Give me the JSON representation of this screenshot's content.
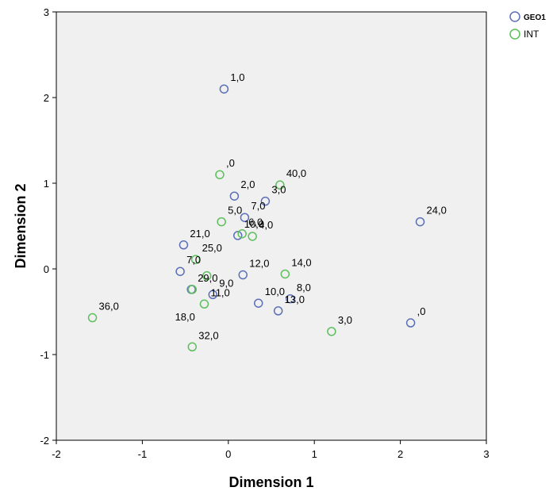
{
  "chart_data": {
    "type": "scatter",
    "title": "",
    "xlabel": "Dimension 1",
    "ylabel": "Dimension 2",
    "xlim": [
      -2,
      3
    ],
    "ylim": [
      -2,
      3
    ],
    "xticks": [
      "-2",
      "-1",
      "0",
      "1",
      "2",
      "3"
    ],
    "yticks": [
      "-2",
      "-1",
      "0",
      "1",
      "2",
      "3"
    ],
    "grid": false,
    "legend_position": "top-right",
    "background": "#f0f0f0",
    "series": [
      {
        "name": "GEO1",
        "color": "#5b6fb8",
        "points": [
          {
            "x": -0.05,
            "y": 2.1,
            "label": "1,0"
          },
          {
            "x": 0.07,
            "y": 0.85,
            "label": "2,0"
          },
          {
            "x": 0.43,
            "y": 0.79,
            "label": "3,0"
          },
          {
            "x": 0.19,
            "y": 0.6,
            "label": "7,0"
          },
          {
            "x": 0.11,
            "y": 0.39,
            "label": "10,0"
          },
          {
            "x": -0.52,
            "y": 0.28,
            "label": "21,0"
          },
          {
            "x": -0.56,
            "y": -0.03,
            "label": "7,0"
          },
          {
            "x": 0.17,
            "y": -0.07,
            "label": "12,0"
          },
          {
            "x": -0.43,
            "y": -0.24,
            "label": "29,0"
          },
          {
            "x": -0.18,
            "y": -0.3,
            "label": "9,0"
          },
          {
            "x": 0.35,
            "y": -0.4,
            "label": "10,0"
          },
          {
            "x": 0.72,
            "y": -0.35,
            "label": "8,0"
          },
          {
            "x": 0.58,
            "y": -0.49,
            "label": "13,0"
          },
          {
            "x": 2.23,
            "y": 0.55,
            "label": "24,0"
          },
          {
            "x": 2.12,
            "y": -0.63,
            "label": ",0"
          }
        ]
      },
      {
        "name": "INT",
        "color": "#5cbf5c",
        "points": [
          {
            "x": -0.1,
            "y": 1.1,
            "label": ",0"
          },
          {
            "x": 0.6,
            "y": 0.98,
            "label": "40,0"
          },
          {
            "x": -0.08,
            "y": 0.55,
            "label": "5,0"
          },
          {
            "x": 0.16,
            "y": 0.41,
            "label": "6,0"
          },
          {
            "x": 0.28,
            "y": 0.38,
            "label": "4,0"
          },
          {
            "x": -0.38,
            "y": 0.11,
            "label": "25,0"
          },
          {
            "x": -0.25,
            "y": -0.08,
            "label": ""
          },
          {
            "x": 0.66,
            "y": -0.06,
            "label": "14,0"
          },
          {
            "x": -0.42,
            "y": -0.24,
            "label": ""
          },
          {
            "x": -0.28,
            "y": -0.41,
            "label": "11,0"
          },
          {
            "x": -0.42,
            "y": -0.91,
            "label": "32,0"
          },
          {
            "x": -1.58,
            "y": -0.57,
            "label": "36,0"
          },
          {
            "x": 1.2,
            "y": -0.73,
            "label": "3,0"
          }
        ]
      }
    ],
    "extra_labels": [
      "18,0"
    ]
  }
}
